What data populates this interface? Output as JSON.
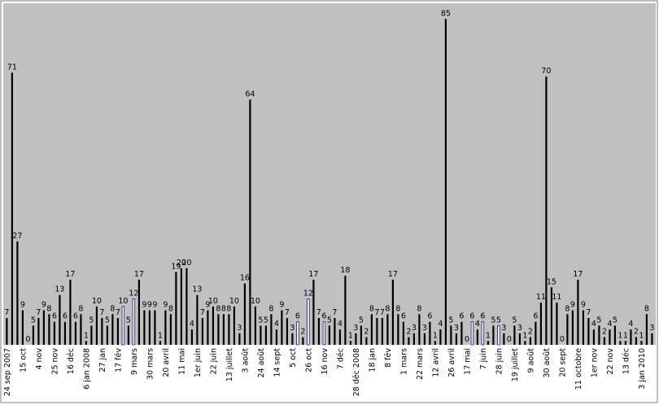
{
  "chart_data": {
    "type": "bar",
    "title": "",
    "xlabel": "",
    "ylabel": "",
    "ylim": [
      0,
      90
    ],
    "grid": false,
    "legend": "none",
    "colors": {
      "plot_background": "#c0c0c0",
      "bar": "#000000",
      "bar_highlight": "#1a1a8c"
    },
    "values": [
      7,
      71,
      27,
      9,
      0,
      5,
      7,
      9,
      8,
      6,
      13,
      6,
      17,
      6,
      8,
      1,
      5,
      10,
      7,
      5,
      8,
      7,
      10,
      5,
      12,
      17,
      9,
      9,
      9,
      1,
      9,
      8,
      19,
      20,
      20,
      4,
      13,
      7,
      9,
      10,
      8,
      8,
      8,
      10,
      3,
      16,
      64,
      10,
      5,
      5,
      8,
      4,
      9,
      7,
      3,
      6,
      2,
      12,
      17,
      7,
      6,
      5,
      7,
      4,
      18,
      1,
      3,
      5,
      2,
      8,
      7,
      7,
      8,
      17,
      8,
      6,
      2,
      3,
      8,
      3,
      6,
      1,
      4,
      85,
      5,
      3,
      6,
      0,
      6,
      4,
      6,
      1,
      5,
      5,
      3,
      0,
      5,
      3,
      1,
      2,
      6,
      11,
      70,
      15,
      11,
      0,
      8,
      9,
      17,
      9,
      7,
      4,
      5,
      2,
      4,
      5,
      1,
      1,
      4,
      2,
      1,
      8,
      3
    ],
    "highlighted": [
      22,
      24,
      55,
      57,
      60,
      88,
      90,
      93
    ],
    "tick_labels": [
      {
        "i": 0,
        "t": "24 sep 2007"
      },
      {
        "i": 3,
        "t": "15 oct"
      },
      {
        "i": 6,
        "t": "4 nov"
      },
      {
        "i": 9,
        "t": "25 nov"
      },
      {
        "i": 12,
        "t": "16 déc"
      },
      {
        "i": 15,
        "t": "6 jan 2008"
      },
      {
        "i": 18,
        "t": "27 jan"
      },
      {
        "i": 21,
        "t": "17 fév"
      },
      {
        "i": 24,
        "t": "9 mars"
      },
      {
        "i": 27,
        "t": "30 mars"
      },
      {
        "i": 30,
        "t": "20 avril"
      },
      {
        "i": 33,
        "t": "11 mai"
      },
      {
        "i": 36,
        "t": "1er juin"
      },
      {
        "i": 39,
        "t": "22 juin"
      },
      {
        "i": 42,
        "t": "13 juillet"
      },
      {
        "i": 45,
        "t": "3 août"
      },
      {
        "i": 48,
        "t": "24 août"
      },
      {
        "i": 51,
        "t": "14 sept"
      },
      {
        "i": 54,
        "t": "5 oct"
      },
      {
        "i": 57,
        "t": "26 oct"
      },
      {
        "i": 60,
        "t": "16 nov"
      },
      {
        "i": 63,
        "t": "7 déc"
      },
      {
        "i": 66,
        "t": "28 déc 2008"
      },
      {
        "i": 69,
        "t": "18 jan"
      },
      {
        "i": 72,
        "t": "8 fév"
      },
      {
        "i": 75,
        "t": "1 mars"
      },
      {
        "i": 78,
        "t": "22 mars"
      },
      {
        "i": 81,
        "t": "12 avril"
      },
      {
        "i": 84,
        "t": "26 avril"
      },
      {
        "i": 87,
        "t": "17 mai"
      },
      {
        "i": 90,
        "t": "7 juin"
      },
      {
        "i": 93,
        "t": "28 juin"
      },
      {
        "i": 96,
        "t": "19 juillet"
      },
      {
        "i": 99,
        "t": "9 août"
      },
      {
        "i": 102,
        "t": "30 août"
      },
      {
        "i": 105,
        "t": "20 sept"
      },
      {
        "i": 108,
        "t": "11 octobre"
      },
      {
        "i": 111,
        "t": "1er nov"
      },
      {
        "i": 114,
        "t": "22 nov"
      },
      {
        "i": 117,
        "t": "13 déc"
      },
      {
        "i": 120,
        "t": "3 jan 2010"
      }
    ]
  }
}
